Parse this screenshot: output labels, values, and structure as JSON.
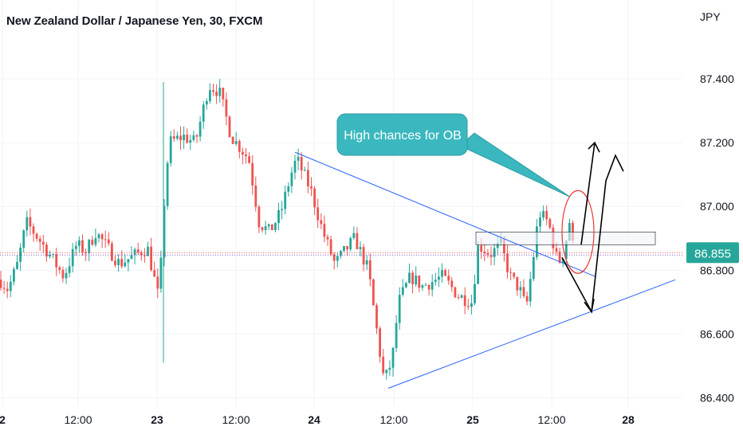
{
  "title": "New Zealand Dollar / Japanese Yen, 30, FXCM",
  "currency": "JPY",
  "callout_text": "High chances for OB",
  "last_price": "86.855",
  "colors": {
    "up": "#26a69a",
    "down": "#ef5350",
    "trendline": "#2962ff",
    "callout_fill": "#3bb8bf",
    "price_tag": "#26a69a",
    "grid": "#f0f3fa",
    "ellipse": "#e53935"
  },
  "chart_data": {
    "type": "candlestick",
    "symbol": "NZDJPY",
    "interval": "30",
    "source": "FXCM",
    "y_ticks": [
      "87.400",
      "87.200",
      "87.000",
      "86.800",
      "86.600",
      "86.400"
    ],
    "x_ticks": [
      "2",
      "12:00",
      "23",
      "12:00",
      "24",
      "12:00",
      "25",
      "12:00",
      "28"
    ],
    "ylim": [
      86.38,
      87.52
    ],
    "last_value": 86.855,
    "annotations": [
      {
        "type": "callout",
        "text": "High chances for OB"
      },
      {
        "type": "trendline",
        "description": "descending resistance"
      },
      {
        "type": "trendline",
        "description": "ascending support"
      },
      {
        "type": "rectangle",
        "description": "order block zone",
        "range": [
          86.88,
          86.92
        ]
      },
      {
        "type": "ellipse",
        "description": "highlight"
      },
      {
        "type": "path",
        "description": "projected price path"
      }
    ]
  }
}
